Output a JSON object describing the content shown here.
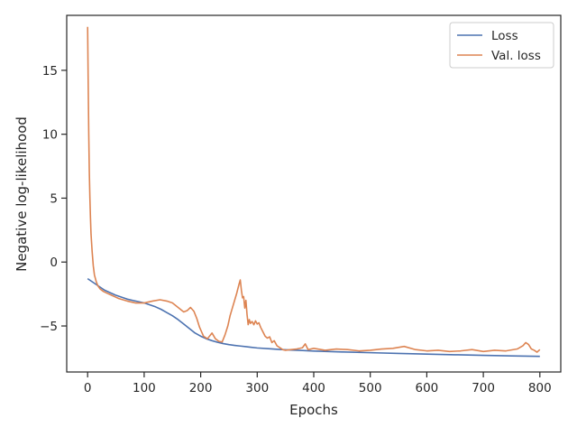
{
  "chart_data": {
    "type": "line",
    "title": "",
    "xlabel": "Epochs",
    "ylabel": "Negative log-likelihood",
    "xlim": [
      -37,
      837
    ],
    "ylim": [
      -8.6,
      19.3
    ],
    "xticks": [
      0,
      100,
      200,
      300,
      400,
      500,
      600,
      700,
      800
    ],
    "yticks": [
      -5,
      0,
      5,
      10,
      15
    ],
    "ytick_labels": [
      "−5",
      "0",
      "5",
      "10",
      "15"
    ],
    "grid": false,
    "legend_position": "top-right",
    "series": [
      {
        "name": "Loss",
        "color": "#4c72b0",
        "x": [
          0,
          10,
          20,
          30,
          40,
          50,
          60,
          70,
          80,
          90,
          100,
          110,
          120,
          130,
          140,
          150,
          160,
          170,
          180,
          190,
          200,
          210,
          220,
          230,
          240,
          250,
          260,
          270,
          280,
          290,
          300,
          320,
          340,
          360,
          380,
          400,
          450,
          500,
          550,
          600,
          650,
          700,
          750,
          800
        ],
        "y": [
          -1.3,
          -1.6,
          -1.9,
          -2.2,
          -2.4,
          -2.6,
          -2.75,
          -2.9,
          -3.0,
          -3.1,
          -3.2,
          -3.35,
          -3.5,
          -3.7,
          -3.95,
          -4.2,
          -4.5,
          -4.85,
          -5.2,
          -5.55,
          -5.8,
          -6.0,
          -6.15,
          -6.28,
          -6.38,
          -6.46,
          -6.52,
          -6.57,
          -6.62,
          -6.67,
          -6.72,
          -6.78,
          -6.84,
          -6.88,
          -6.92,
          -6.96,
          -7.03,
          -7.09,
          -7.15,
          -7.2,
          -7.25,
          -7.3,
          -7.34,
          -7.38
        ]
      },
      {
        "name": "Val. loss",
        "color": "#dd8452",
        "x": [
          0,
          1,
          2,
          3,
          4,
          5,
          6,
          8,
          10,
          12,
          15,
          18,
          22,
          28,
          35,
          45,
          55,
          70,
          85,
          100,
          115,
          128,
          140,
          150,
          160,
          170,
          176,
          182,
          188,
          193,
          198,
          205,
          212,
          220,
          226,
          232,
          238,
          243,
          248,
          252,
          256,
          260,
          264,
          268,
          270,
          272,
          274,
          276,
          278,
          280,
          282,
          284,
          286,
          288,
          291,
          294,
          297,
          300,
          303,
          306,
          310,
          314,
          318,
          322,
          326,
          330,
          335,
          340,
          345,
          350,
          360,
          370,
          380,
          385,
          390,
          400,
          420,
          440,
          460,
          480,
          500,
          520,
          540,
          560,
          580,
          600,
          620,
          640,
          660,
          680,
          700,
          720,
          740,
          760,
          770,
          775,
          780,
          785,
          790,
          795,
          800
        ],
        "y": [
          18.4,
          14.0,
          10.0,
          7.0,
          5.0,
          3.5,
          2.2,
          0.8,
          -0.3,
          -1.0,
          -1.5,
          -1.85,
          -2.1,
          -2.3,
          -2.45,
          -2.65,
          -2.85,
          -3.05,
          -3.2,
          -3.2,
          -3.05,
          -2.95,
          -3.05,
          -3.2,
          -3.55,
          -3.9,
          -3.8,
          -3.55,
          -3.85,
          -4.4,
          -5.1,
          -5.8,
          -6.0,
          -5.55,
          -6.0,
          -6.2,
          -6.25,
          -5.7,
          -5.0,
          -4.2,
          -3.6,
          -3.0,
          -2.4,
          -1.7,
          -1.4,
          -2.2,
          -2.8,
          -2.7,
          -3.6,
          -3.0,
          -4.1,
          -4.9,
          -4.5,
          -4.8,
          -4.65,
          -4.9,
          -4.6,
          -4.85,
          -4.75,
          -5.1,
          -5.45,
          -5.8,
          -5.95,
          -5.85,
          -6.3,
          -6.15,
          -6.55,
          -6.7,
          -6.85,
          -6.9,
          -6.85,
          -6.8,
          -6.7,
          -6.4,
          -6.85,
          -6.75,
          -6.9,
          -6.8,
          -6.85,
          -6.95,
          -6.9,
          -6.8,
          -6.75,
          -6.6,
          -6.85,
          -6.95,
          -6.9,
          -7.0,
          -6.95,
          -6.85,
          -7.0,
          -6.9,
          -6.95,
          -6.8,
          -6.55,
          -6.3,
          -6.45,
          -6.8,
          -6.9,
          -7.05,
          -6.85
        ]
      }
    ]
  }
}
